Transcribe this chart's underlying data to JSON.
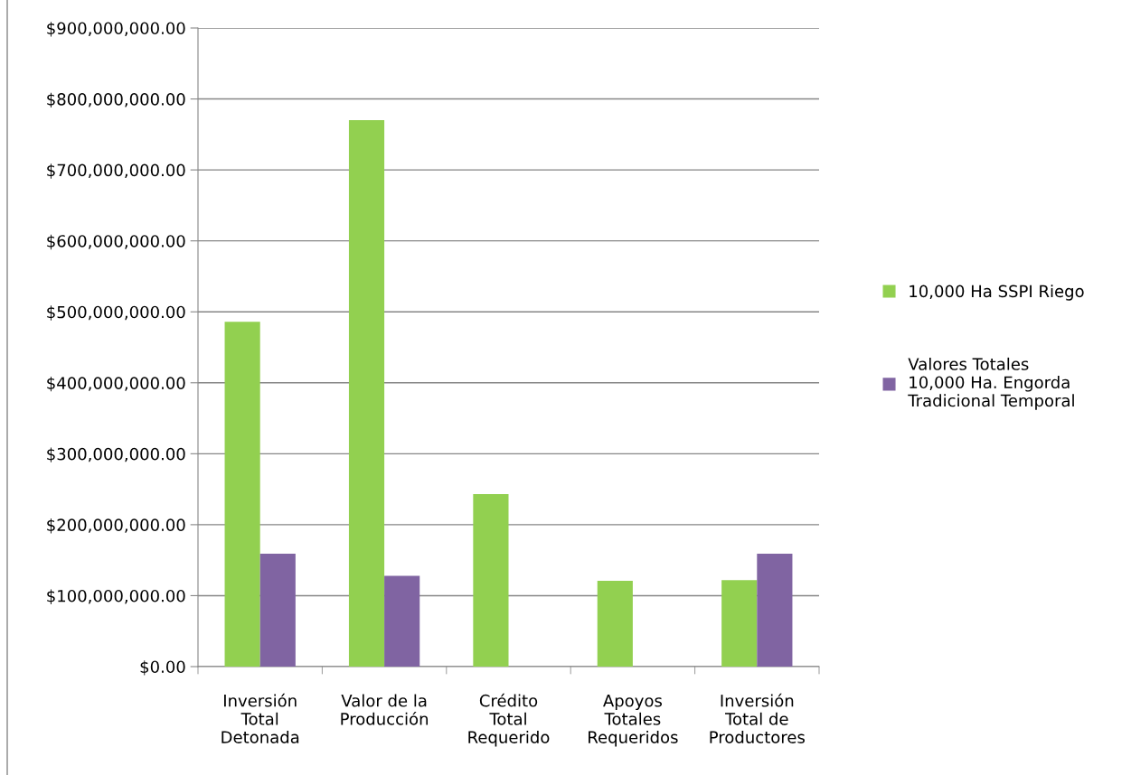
{
  "chart_data": {
    "type": "bar",
    "categories": [
      "Inversión\nTotal\nDetonada",
      "Valor de la\nProducción",
      "Crédito\nTotal\nRequerido",
      "Apoyos\nTotales\nRequeridos",
      "Inversión\nTotal de\nProductores"
    ],
    "series": [
      {
        "name": "10,000 Ha SSPI Riego",
        "color": "#92d050",
        "values": [
          486000000,
          770000000,
          243000000,
          121000000,
          122000000
        ]
      },
      {
        "name": "Valores Totales\n10,000 Ha. Engorda\nTradicional Temporal",
        "color": "#8064a2",
        "values": [
          159000000,
          128000000,
          null,
          null,
          159000000
        ]
      }
    ],
    "ylim": [
      0,
      900000000
    ],
    "yticks": [
      {
        "value": 0,
        "label": "$0.00"
      },
      {
        "value": 100000000,
        "label": "$100,000,000.00"
      },
      {
        "value": 200000000,
        "label": "$200,000,000.00"
      },
      {
        "value": 300000000,
        "label": "$300,000,000.00"
      },
      {
        "value": 400000000,
        "label": "$400,000,000.00"
      },
      {
        "value": 500000000,
        "label": "$500,000,000.00"
      },
      {
        "value": 600000000,
        "label": "$600,000,000.00"
      },
      {
        "value": 700000000,
        "label": "$700,000,000.00"
      },
      {
        "value": 800000000,
        "label": "$800,000,000.00"
      },
      {
        "value": 900000000,
        "label": "$900,000,000.00"
      }
    ],
    "grid": "y",
    "legend": "right"
  }
}
